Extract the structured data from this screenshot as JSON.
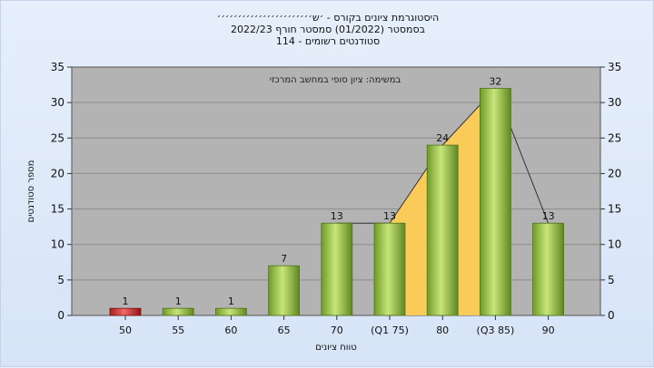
{
  "titles": [
    "היסטוגרמת ציונים בקורס - ׳ש׳׳׳׳׳׳׳׳׳׳׳׳׳׳׳׳׳׳׳׳׳׳׳",
    "בסמסטר  (01/2022)  סמסטר חורף  2022/23",
    "סטודנטים רשומים - 114"
  ],
  "chart_data": {
    "type": "bar",
    "categories": [
      "50",
      "55",
      "60",
      "65",
      "70",
      "(Q1 75)",
      "80",
      "(Q3 85)",
      "90"
    ],
    "values": [
      1,
      1,
      1,
      7,
      13,
      13,
      24,
      32,
      13
    ],
    "value_labels": [
      "1",
      "1",
      "1",
      "7",
      "13",
      "13",
      "24",
      "32",
      "13"
    ],
    "highlight_index": 0,
    "xlabel": "טווח ציונים",
    "ylabel": "מספר סטודנטים",
    "annotation": "במשימה: ציון סופי במחשב המרכזי",
    "ylim": [
      0,
      35
    ],
    "yticks": [
      0,
      5,
      10,
      15,
      20,
      25,
      30,
      35
    ],
    "grid": true,
    "quartile_band": {
      "from_index": 5,
      "to_index": 7
    },
    "colors": {
      "plot_bg": "#b3b3b3",
      "bar": "#8fb83e",
      "bar_highlight": "#cc2b2b",
      "band": "#ffcc55",
      "grid": "#8c8c8c"
    }
  }
}
